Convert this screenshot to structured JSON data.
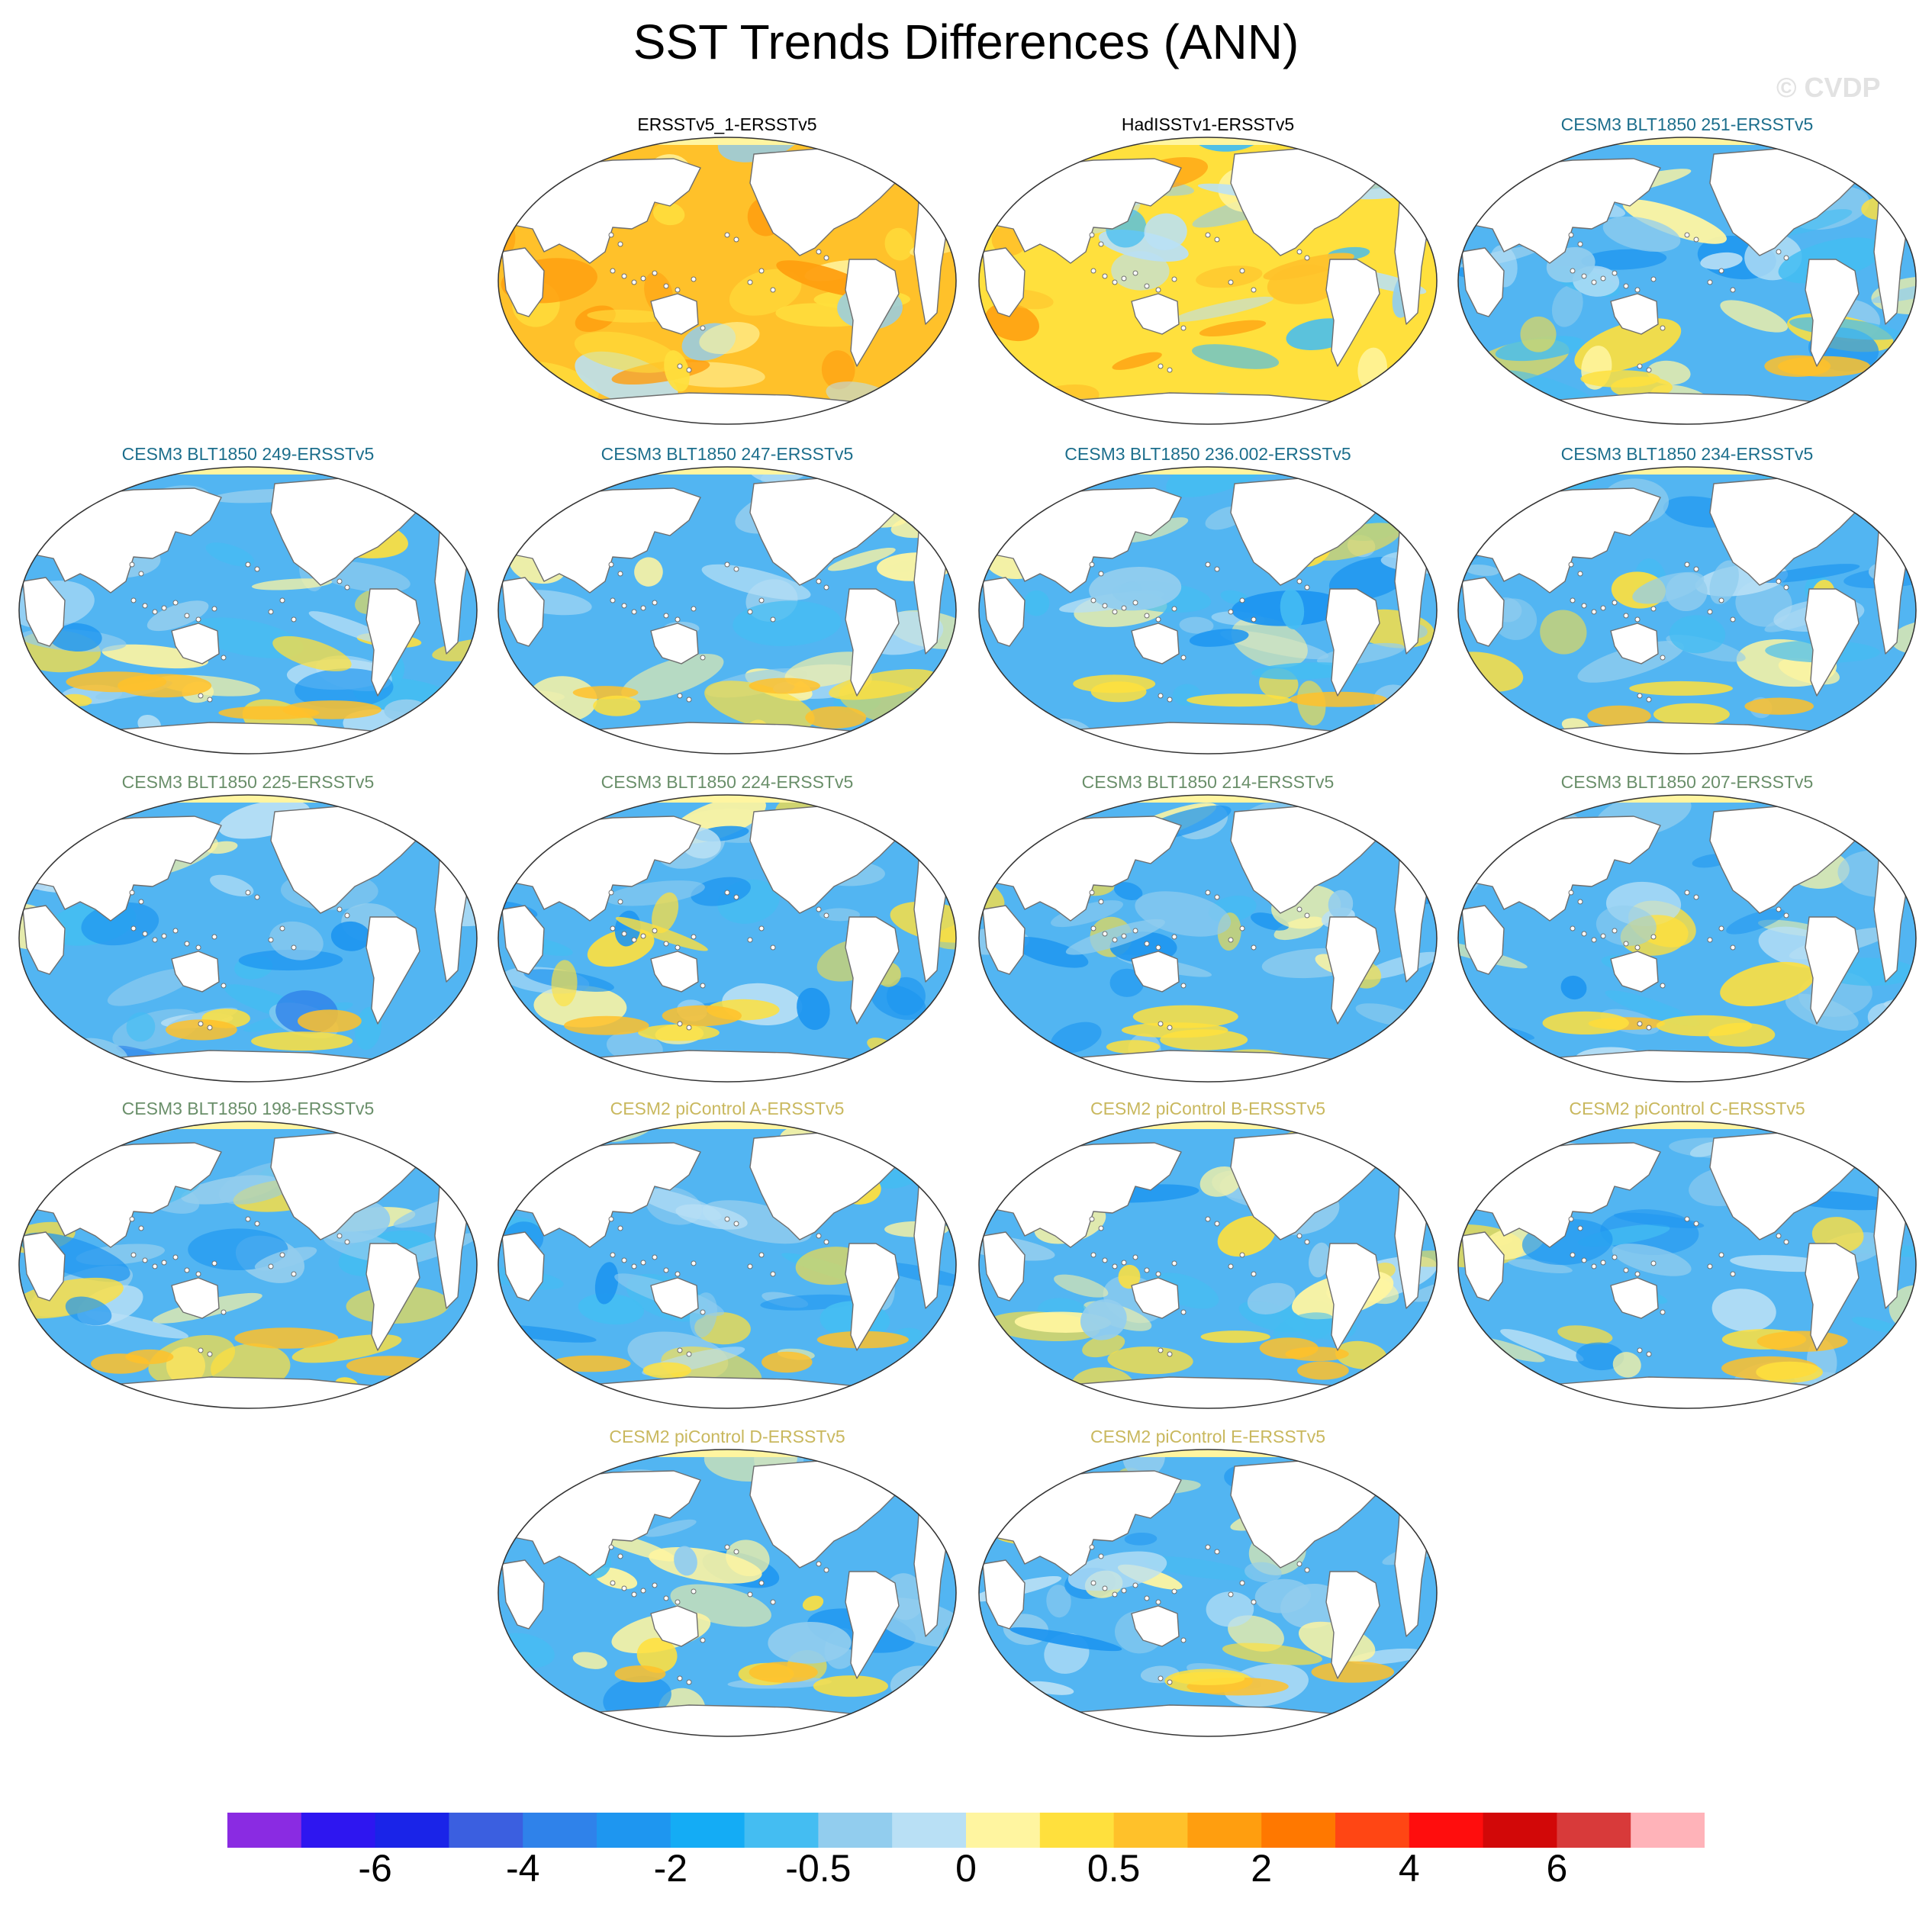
{
  "title": "SST Trends Differences (ANN)",
  "watermark": "© CVDP",
  "variable": "SST trend difference",
  "season": "ANN",
  "colors": {
    "reference": "#000000",
    "cesm3_a": "#1c6e8c",
    "cesm3_b": "#6a8f6a",
    "cesm2": "#c9b85e",
    "ocean_base": "#52b5f2",
    "land": "#ffffff",
    "coast": "#6e6e6e"
  },
  "panels": [
    {
      "title": "ERSSTv5_1-ERSSTv5",
      "group": "reference",
      "pattern": "warm"
    },
    {
      "title": "HadISSTv1-ERSSTv5",
      "group": "reference",
      "pattern": "mixed"
    },
    {
      "title": "CESM3 BLT1850 251-ERSSTv5",
      "group": "cesm3_a",
      "pattern": "cool"
    },
    {
      "title": "CESM3 BLT1850 249-ERSSTv5",
      "group": "cesm3_a",
      "pattern": "cool"
    },
    {
      "title": "CESM3 BLT1850 247-ERSSTv5",
      "group": "cesm3_a",
      "pattern": "cool_hotspot"
    },
    {
      "title": "CESM3 BLT1850 236.002-ERSSTv5",
      "group": "cesm3_a",
      "pattern": "cool"
    },
    {
      "title": "CESM3 BLT1850 234-ERSSTv5",
      "group": "cesm3_a",
      "pattern": "cool"
    },
    {
      "title": "CESM3 BLT1850 225-ERSSTv5",
      "group": "cesm3_b",
      "pattern": "cool_blue"
    },
    {
      "title": "CESM3 BLT1850 224-ERSSTv5",
      "group": "cesm3_b",
      "pattern": "cool"
    },
    {
      "title": "CESM3 BLT1850 214-ERSSTv5",
      "group": "cesm3_b",
      "pattern": "cool"
    },
    {
      "title": "CESM3 BLT1850 207-ERSSTv5",
      "group": "cesm3_b",
      "pattern": "cool"
    },
    {
      "title": "CESM3 BLT1850 198-ERSSTv5",
      "group": "cesm3_b",
      "pattern": "cool"
    },
    {
      "title": "CESM2 piControl A-ERSSTv5",
      "group": "cesm2",
      "pattern": "cool"
    },
    {
      "title": "CESM2 piControl B-ERSSTv5",
      "group": "cesm2",
      "pattern": "cool"
    },
    {
      "title": "CESM2 piControl C-ERSSTv5",
      "group": "cesm2",
      "pattern": "cool"
    },
    {
      "title": "CESM2 piControl D-ERSSTv5",
      "group": "cesm2",
      "pattern": "cool"
    },
    {
      "title": "CESM2 piControl E-ERSSTv5",
      "group": "cesm2",
      "pattern": "cool"
    }
  ],
  "colorbar": {
    "colors": [
      "#8a2be2",
      "#2e16f0",
      "#1a24e8",
      "#3b5fe0",
      "#2f82ea",
      "#1e96f0",
      "#14acf5",
      "#44bdf2",
      "#92cdee",
      "#b9e0f5",
      "#fff5a0",
      "#ffe03d",
      "#ffc12a",
      "#ff9e0f",
      "#ff7800",
      "#ff4614",
      "#ff0d0d",
      "#d20808",
      "#d83a3a",
      "#ffb3b9"
    ],
    "labels": [
      "-6",
      "-4",
      "-2",
      "-0.5",
      "0",
      "0.5",
      "2",
      "4",
      "6"
    ]
  }
}
